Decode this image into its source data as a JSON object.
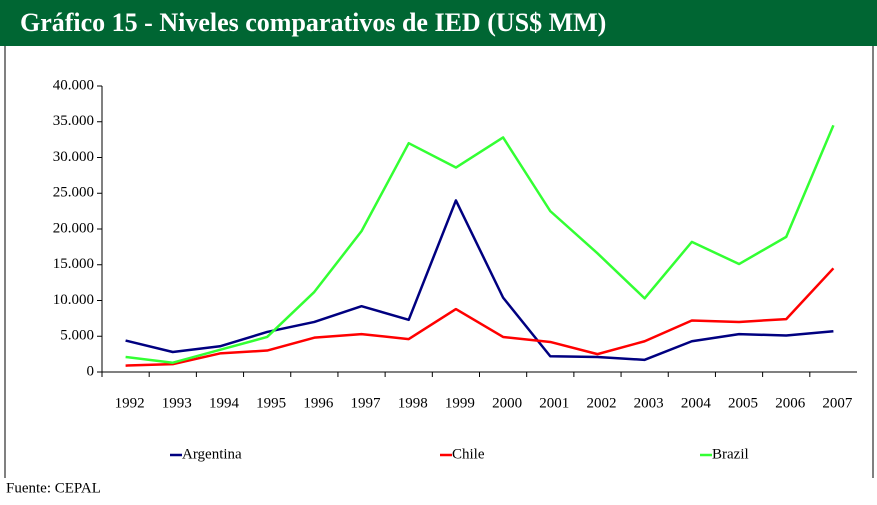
{
  "chart_data": {
    "type": "line",
    "title": "Gráfico 15 - Niveles comparativos de IED (US$ MM)",
    "source": "Fuente: CEPAL",
    "categories": [
      "1992",
      "1993",
      "1994",
      "1995",
      "1996",
      "1997",
      "1998",
      "1999",
      "2000",
      "2001",
      "2002",
      "2003",
      "2004",
      "2005",
      "2006",
      "2007"
    ],
    "series": [
      {
        "name": "Argentina",
        "color": "#000080",
        "values": [
          4400,
          2800,
          3600,
          5600,
          7000,
          9200,
          7300,
          24000,
          10400,
          2200,
          2100,
          1700,
          4300,
          5300,
          5100,
          5700
        ]
      },
      {
        "name": "Chile",
        "color": "#ff0000",
        "values": [
          900,
          1100,
          2600,
          3000,
          4800,
          5300,
          4600,
          8800,
          4900,
          4200,
          2500,
          4300,
          7200,
          7000,
          7400,
          14500
        ]
      },
      {
        "name": "Brazil",
        "color": "#33ff33",
        "values": [
          2100,
          1300,
          3100,
          4900,
          11200,
          19700,
          32000,
          28600,
          32800,
          22500,
          16600,
          10300,
          18200,
          15100,
          18900,
          34500
        ]
      }
    ],
    "ylim": [
      0,
      40000
    ],
    "yticks": [
      0,
      {
        "value": 5000,
        "label": "5.000"
      },
      {
        "value": 10000,
        "label": "10.000"
      },
      {
        "value": 15000,
        "label": "15.000"
      },
      {
        "value": 20000,
        "label": "20.000"
      },
      {
        "value": 25000,
        "label": "25.000"
      },
      {
        "value": 30000,
        "label": "30.000"
      },
      {
        "value": 35000,
        "label": "35.000"
      },
      {
        "value": 40000,
        "label": "40.000"
      }
    ],
    "grid": false,
    "legend": "bottom"
  }
}
